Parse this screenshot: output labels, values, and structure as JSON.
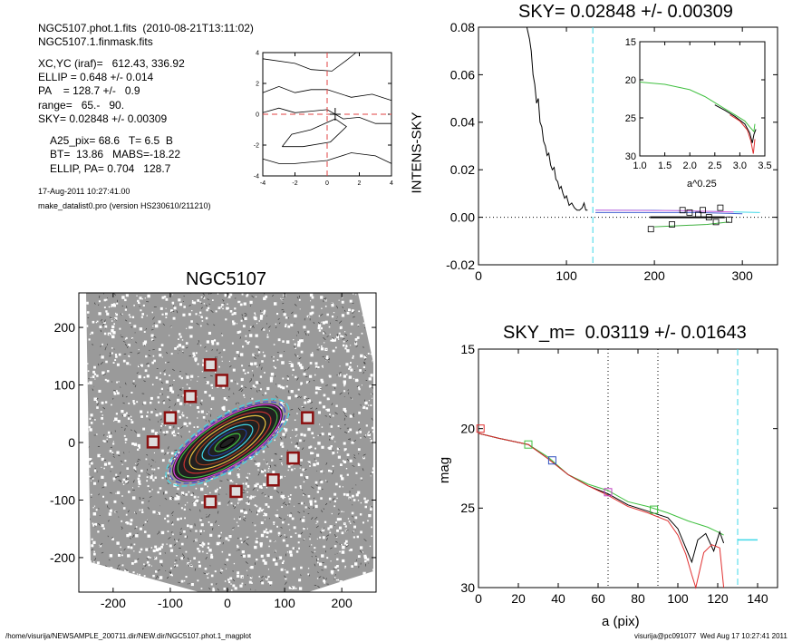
{
  "header": {
    "line1": "NGC5107.phot.1.fits  (2010-08-21T13:11:02)",
    "line2": "NGC5107.1.finmask.fits",
    "xcyc": "XC,YC (iraf)=   612.43, 336.92",
    "ellip": "ELLIP = 0.648 +/- 0.014",
    "pa": "PA    = 128.7 +/-   0.9",
    "range": "range=   65.-   90.",
    "sky": "SKY= 0.02848 +/- 0.00309",
    "a25": "A25_pix= 68.6   T= 6.5  B",
    "bt": "BT=  13.86   MABS=-18.22",
    "ellip_pa": "ELLIP, PA= 0.704   128.7",
    "date": "17-Aug-2011 10:27:41.00",
    "program": "make_datalist0.pro (version HS230610/211210)"
  },
  "footer": {
    "path": "/home/visurija/NEWSAMPLE_200711.dir/NEW.dir/NGC5107.phot.1_magplot",
    "stamp": "visurija@pc091077  Wed Aug 17 10:27:41 2011"
  },
  "chart_data": [
    {
      "id": "contour",
      "type": "line",
      "title": "",
      "xlim": [
        -4,
        4
      ],
      "ylim": [
        -4,
        4
      ],
      "x_ticks": [
        "-4",
        "-2",
        "0",
        "2",
        "4"
      ],
      "y_ticks": [
        "-4",
        "-2",
        "0",
        "2",
        "4"
      ],
      "cross_color": "#e04040",
      "contours": [
        [
          [
            -4,
            3.6
          ],
          [
            -2,
            3.3
          ],
          [
            -1,
            2.9
          ],
          [
            0.3,
            2.8
          ],
          [
            1.2,
            3.5
          ],
          [
            1.8,
            4
          ]
        ],
        [
          [
            -4,
            1.4
          ],
          [
            -3,
            1.8
          ],
          [
            -2,
            1.4
          ],
          [
            -1,
            1.6
          ],
          [
            0,
            1.6
          ],
          [
            1.5,
            1.1
          ],
          [
            2.8,
            1.3
          ],
          [
            4,
            0.9
          ]
        ],
        [
          [
            -4,
            0.1
          ],
          [
            -3,
            0.4
          ],
          [
            -2,
            0.1
          ],
          [
            -1,
            0.2
          ],
          [
            0,
            0.3
          ],
          [
            1,
            -0.3
          ],
          [
            2,
            -0.2
          ],
          [
            3,
            -0.6
          ],
          [
            4,
            -0.6
          ]
        ],
        [
          [
            -2.8,
            -2.1
          ],
          [
            -2.2,
            -1.3
          ],
          [
            -1,
            -1
          ],
          [
            0.5,
            -0.3
          ],
          [
            1.2,
            -0.8
          ],
          [
            0.2,
            -1.8
          ],
          [
            -1.5,
            -2.1
          ],
          [
            -2.8,
            -2.1
          ]
        ],
        [
          [
            -4,
            -2.9
          ],
          [
            -3,
            -3.2
          ],
          [
            -2,
            -3.2
          ],
          [
            0,
            -3
          ],
          [
            1.5,
            -2.5
          ],
          [
            3,
            -2.7
          ],
          [
            4,
            -3.2
          ]
        ]
      ]
    },
    {
      "id": "sky-profile",
      "type": "line",
      "title": "SKY= 0.02848 +/- 0.00309",
      "xlabel": "",
      "ylabel": "INTENS-SKY",
      "xlim": [
        0,
        340
      ],
      "ylim": [
        -0.02,
        0.08
      ],
      "x_ticks": [
        "0",
        "100",
        "200",
        "300"
      ],
      "y_ticks": [
        "-0.02",
        "0.00",
        "0.02",
        "0.04",
        "0.06",
        "0.08"
      ],
      "vline_x": 130,
      "vline_color": "#40d8e8",
      "series": [
        {
          "color": "#000000",
          "points": [
            [
              55,
              0.08
            ],
            [
              58,
              0.075
            ],
            [
              60,
              0.07
            ],
            [
              62,
              0.06
            ],
            [
              64,
              0.056
            ],
            [
              66,
              0.048
            ],
            [
              68,
              0.05
            ],
            [
              70,
              0.04
            ],
            [
              72,
              0.038
            ],
            [
              74,
              0.032
            ],
            [
              76,
              0.03
            ],
            [
              78,
              0.026
            ],
            [
              80,
              0.027
            ],
            [
              82,
              0.022
            ],
            [
              84,
              0.02
            ],
            [
              86,
              0.021
            ],
            [
              88,
              0.016
            ],
            [
              90,
              0.015
            ],
            [
              92,
              0.012
            ],
            [
              94,
              0.013
            ],
            [
              96,
              0.01
            ],
            [
              98,
              0.008
            ],
            [
              100,
              0.009
            ],
            [
              103,
              0.005
            ],
            [
              106,
              0.006
            ],
            [
              109,
              0.004
            ],
            [
              112,
              0.003
            ],
            [
              115,
              0.003
            ],
            [
              118,
              0.004
            ],
            [
              120,
              0.006
            ],
            [
              122,
              0.003
            ],
            [
              124,
              0.003
            ]
          ]
        },
        {
          "color": "#000000",
          "points": [
            [
              195,
              0.0
            ],
            [
              280,
              0.0
            ]
          ]
        },
        {
          "color": "#40d8e8",
          "points": [
            [
              133,
              0.003
            ],
            [
              200,
              0.003
            ],
            [
              320,
              0.002
            ]
          ]
        },
        {
          "color": "#4060d0",
          "points": [
            [
              133,
              0.002
            ],
            [
              250,
              0.002
            ],
            [
              300,
              0.0015
            ]
          ]
        },
        {
          "color": "#e060e0",
          "points": [
            [
              133,
              0.003
            ],
            [
              230,
              0.0028
            ],
            [
              290,
              0.0022
            ]
          ]
        },
        {
          "color": "#40b040",
          "points": [
            [
              200,
              -0.004
            ],
            [
              260,
              -0.003
            ],
            [
              285,
              -0.002
            ]
          ]
        }
      ],
      "markers": [
        [
          196,
          -0.005
        ],
        [
          220,
          -0.003
        ],
        [
          232,
          0.003
        ],
        [
          240,
          0.002
        ],
        [
          250,
          0.001
        ],
        [
          262,
          0.0
        ],
        [
          270,
          -0.002
        ],
        [
          285,
          -0.001
        ],
        [
          275,
          0.004
        ],
        [
          255,
          0.003
        ]
      ]
    },
    {
      "id": "sky-inset",
      "type": "line",
      "title": "",
      "xlabel": "a^0.25",
      "ylabel": "",
      "xlim": [
        1.0,
        3.5
      ],
      "ylim": [
        15,
        30
      ],
      "y_inverted": true,
      "x_ticks": [
        "1.0",
        "1.5",
        "2.0",
        "2.5",
        "3.0",
        "3.5"
      ],
      "y_ticks": [
        "15",
        "20",
        "25",
        "30"
      ],
      "series": [
        {
          "color": "#40c040",
          "points": [
            [
              1.0,
              20.3
            ],
            [
              1.5,
              20.6
            ],
            [
              2.0,
              21.3
            ],
            [
              2.3,
              22.2
            ],
            [
              2.5,
              23.0
            ],
            [
              2.7,
              23.8
            ],
            [
              2.9,
              24.6
            ],
            [
              3.1,
              25.4
            ],
            [
              3.2,
              26.2
            ],
            [
              3.28,
              26.8
            ],
            [
              3.3,
              25.8
            ]
          ]
        },
        {
          "color": "#000000",
          "points": [
            [
              2.5,
              23.3
            ],
            [
              2.7,
              24.0
            ],
            [
              2.9,
              24.8
            ],
            [
              3.1,
              25.8
            ],
            [
              3.2,
              27.0
            ],
            [
              3.25,
              28.3
            ],
            [
              3.28,
              27.2
            ],
            [
              3.32,
              26.5
            ]
          ]
        },
        {
          "color": "#e03030",
          "points": [
            [
              2.8,
              24.6
            ],
            [
              3.0,
              25.4
            ],
            [
              3.15,
              26.6
            ],
            [
              3.22,
              28.0
            ],
            [
              3.27,
              29.7
            ],
            [
              3.3,
              27.8
            ]
          ]
        }
      ]
    },
    {
      "id": "galaxy-image",
      "type": "scatter",
      "title": "NGC5107",
      "xlim": [
        -260,
        260
      ],
      "ylim": [
        -260,
        260
      ],
      "x_ticks": [
        "-200",
        "-100",
        "0",
        "100",
        "200"
      ],
      "y_ticks": [
        "-200",
        "-100",
        "0",
        "100",
        "200"
      ],
      "ellipse_pa_deg": 128.7,
      "ellipse_ellip": 0.648,
      "masked_sources": [
        [
          -30,
          135
        ],
        [
          -10,
          108
        ],
        [
          -65,
          80
        ],
        [
          -100,
          43
        ],
        [
          -130,
          1
        ],
        [
          140,
          43
        ],
        [
          115,
          -27
        ],
        [
          80,
          -65
        ],
        [
          15,
          -85
        ],
        [
          -30,
          -103
        ]
      ]
    },
    {
      "id": "mag-profile",
      "type": "line",
      "title": "SKY_m=  0.03119 +/- 0.01643",
      "xlabel": "a (pix)",
      "ylabel": "mag",
      "xlim": [
        0,
        150
      ],
      "ylim": [
        15,
        30
      ],
      "y_inverted": true,
      "x_ticks": [
        "0",
        "20",
        "40",
        "60",
        "80",
        "100",
        "120",
        "140"
      ],
      "y_ticks": [
        "15",
        "20",
        "25",
        "30"
      ],
      "dotted_x": [
        65,
        90
      ],
      "dash_x": 130,
      "dash_color": "#40d8e8",
      "dash_segment": [
        [
          130,
          27.0
        ],
        [
          140,
          27.0
        ]
      ],
      "series": [
        {
          "color": "#40c040",
          "points": [
            [
              0,
              20.3
            ],
            [
              10,
              20.6
            ],
            [
              25,
              21.0
            ],
            [
              35,
              21.8
            ],
            [
              45,
              22.9
            ],
            [
              55,
              23.5
            ],
            [
              65,
              23.9
            ],
            [
              75,
              24.6
            ],
            [
              85,
              24.9
            ],
            [
              95,
              25.3
            ],
            [
              105,
              25.8
            ],
            [
              110,
              26.0
            ],
            [
              115,
              26.2
            ],
            [
              120,
              26.5
            ],
            [
              123,
              26.7
            ]
          ]
        },
        {
          "color": "#000000",
          "points": [
            [
              0,
              20.3
            ],
            [
              10,
              20.6
            ],
            [
              25,
              21.0
            ],
            [
              35,
              21.9
            ],
            [
              45,
              22.9
            ],
            [
              55,
              23.6
            ],
            [
              65,
              24.1
            ],
            [
              75,
              24.8
            ],
            [
              85,
              25.2
            ],
            [
              95,
              25.6
            ],
            [
              100,
              26.3
            ],
            [
              104,
              27.5
            ],
            [
              107,
              28.4
            ],
            [
              110,
              27.0
            ],
            [
              114,
              26.6
            ],
            [
              118,
              27.7
            ],
            [
              121,
              26.5
            ],
            [
              123,
              27.2
            ]
          ]
        },
        {
          "color": "#e03030",
          "points": [
            [
              0,
              20.3
            ],
            [
              10,
              20.6
            ],
            [
              25,
              21.0
            ],
            [
              35,
              21.9
            ],
            [
              45,
              22.9
            ],
            [
              55,
              23.6
            ],
            [
              65,
              24.2
            ],
            [
              75,
              24.9
            ],
            [
              85,
              25.3
            ],
            [
              95,
              25.8
            ],
            [
              100,
              26.7
            ],
            [
              104,
              27.9
            ],
            [
              107,
              29.2
            ],
            [
              109,
              30.0
            ],
            [
              113,
              27.8
            ],
            [
              117,
              27.3
            ],
            [
              121,
              27.5
            ],
            [
              123,
              30.0
            ]
          ]
        }
      ],
      "markers": [
        {
          "x": 1,
          "y": 20.0,
          "color": "#e03030"
        },
        {
          "x": 25,
          "y": 21.0,
          "color": "#40c040"
        },
        {
          "x": 37,
          "y": 22.0,
          "color": "#3050c0"
        },
        {
          "x": 65,
          "y": 24.0,
          "color": "#c040c0"
        },
        {
          "x": 88,
          "y": 25.1,
          "color": "#40c040"
        }
      ]
    }
  ]
}
